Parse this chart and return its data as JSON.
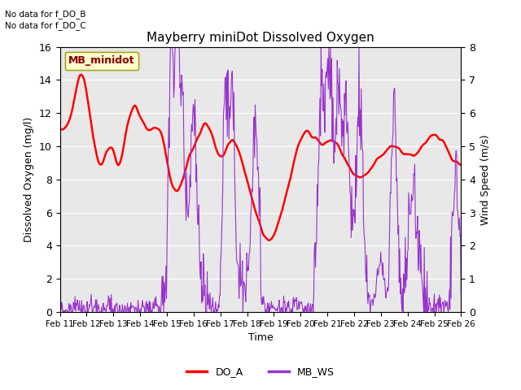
{
  "title": "Mayberry miniDot Dissolved Oxygen",
  "ylabel_left": "Dissolved Oxygen (mg/l)",
  "ylabel_right": "Wind Speed (m/s)",
  "xlabel": "Time",
  "annotation1": "No data for f_DO_B",
  "annotation2": "No data for f_DO_C",
  "legend_box_label": "MB_minidot",
  "x_tick_labels": [
    "Feb 11",
    "Feb 12",
    "Feb 13",
    "Feb 14",
    "Feb 15",
    "Feb 16",
    "Feb 17",
    "Feb 18",
    "Feb 19",
    "Feb 20",
    "Feb 21",
    "Feb 22",
    "Feb 23",
    "Feb 24",
    "Feb 25",
    "Feb 26"
  ],
  "ylim_left": [
    0,
    16
  ],
  "ylim_right": [
    0.0,
    8.0
  ],
  "yticks_left": [
    0,
    2,
    4,
    6,
    8,
    10,
    12,
    14,
    16
  ],
  "yticks_right": [
    0.0,
    1.0,
    2.0,
    3.0,
    4.0,
    5.0,
    6.0,
    7.0,
    8.0
  ],
  "do_color": "#ff0000",
  "ws_color": "#9933cc",
  "plot_bg_color": "#e8e8e8",
  "fig_bg_color": "#ffffff",
  "legend_box_facecolor": "#ffffcc",
  "legend_box_edgecolor": "#999900",
  "grid_color": "#ffffff",
  "n_points": 720
}
